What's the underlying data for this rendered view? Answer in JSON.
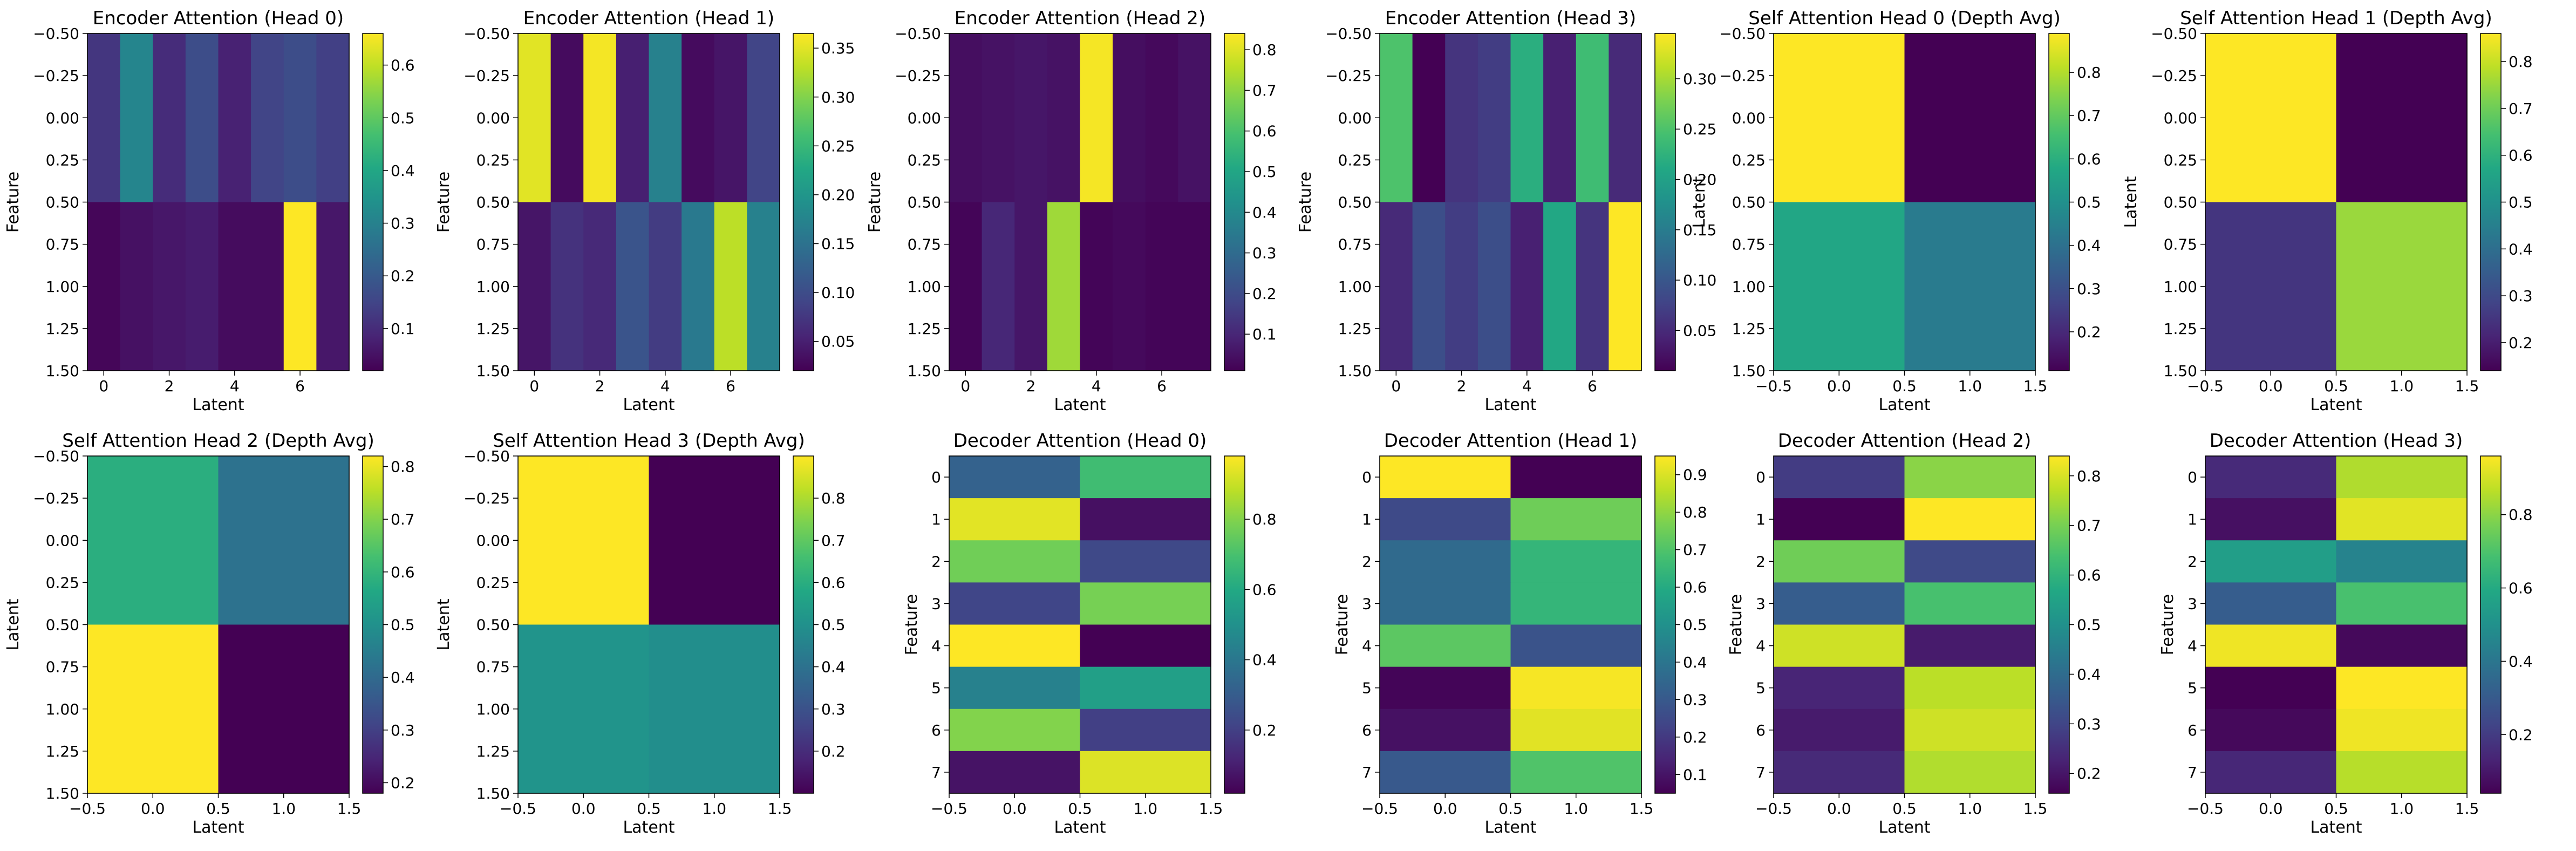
{
  "colormap": "viridis",
  "chart_data": [
    {
      "type": "heatmap",
      "title": "Encoder Attention (Head 0)",
      "xlabel": "Latent",
      "ylabel": "Feature",
      "extent": [
        -0.5,
        7.5,
        1.5,
        -0.5
      ],
      "rows": [
        [
          0.12,
          0.31,
          0.1,
          0.17,
          0.08,
          0.15,
          0.17,
          0.14
        ],
        [
          0.03,
          0.05,
          0.06,
          0.07,
          0.04,
          0.04,
          0.66,
          0.06
        ]
      ],
      "xticks": [
        0,
        2,
        4,
        6
      ],
      "yticks": [
        -0.5,
        -0.25,
        0.0,
        0.25,
        0.5,
        0.75,
        1.0,
        1.25,
        1.5
      ],
      "xtick_labels": [
        "0",
        "2",
        "4",
        "6"
      ],
      "ytick_labels": [
        "−0.50",
        "−0.25",
        "0.00",
        "0.25",
        "0.50",
        "0.75",
        "1.00",
        "1.25",
        "1.50"
      ],
      "colorbar": {
        "min": 0.02,
        "max": 0.66,
        "ticks": [
          0.1,
          0.2,
          0.3,
          0.4,
          0.5,
          0.6
        ],
        "labels": [
          "0.1",
          "0.2",
          "0.3",
          "0.4",
          "0.5",
          "0.6"
        ]
      }
    },
    {
      "type": "heatmap",
      "title": "Encoder Attention (Head 1)",
      "xlabel": "Latent",
      "ylabel": "Feature",
      "extent": [
        -0.5,
        7.5,
        1.5,
        -0.5
      ],
      "rows": [
        [
          0.35,
          0.03,
          0.36,
          0.05,
          0.17,
          0.03,
          0.04,
          0.09
        ],
        [
          0.04,
          0.07,
          0.06,
          0.11,
          0.08,
          0.16,
          0.33,
          0.17
        ]
      ],
      "xticks": [
        0,
        2,
        4,
        6
      ],
      "yticks": [
        -0.5,
        -0.25,
        0.0,
        0.25,
        0.5,
        0.75,
        1.0,
        1.25,
        1.5
      ],
      "xtick_labels": [
        "0",
        "2",
        "4",
        "6"
      ],
      "ytick_labels": [
        "−0.50",
        "−0.25",
        "0.00",
        "0.25",
        "0.50",
        "0.75",
        "1.00",
        "1.25",
        "1.50"
      ],
      "colorbar": {
        "min": 0.02,
        "max": 0.365,
        "ticks": [
          0.05,
          0.1,
          0.15,
          0.2,
          0.25,
          0.3,
          0.35
        ],
        "labels": [
          "0.05",
          "0.10",
          "0.15",
          "0.20",
          "0.25",
          "0.30",
          "0.35"
        ]
      }
    },
    {
      "type": "heatmap",
      "title": "Encoder Attention (Head 2)",
      "xlabel": "Latent",
      "ylabel": "Feature",
      "extent": [
        -0.5,
        7.5,
        1.5,
        -0.5
      ],
      "rows": [
        [
          0.04,
          0.05,
          0.06,
          0.05,
          0.83,
          0.04,
          0.03,
          0.05
        ],
        [
          0.02,
          0.1,
          0.06,
          0.72,
          0.02,
          0.03,
          0.02,
          0.02
        ]
      ],
      "xticks": [
        0,
        2,
        4,
        6
      ],
      "yticks": [
        -0.5,
        -0.25,
        0.0,
        0.25,
        0.5,
        0.75,
        1.0,
        1.25,
        1.5
      ],
      "xtick_labels": [
        "0",
        "2",
        "4",
        "6"
      ],
      "ytick_labels": [
        "−0.50",
        "−0.25",
        "0.00",
        "0.25",
        "0.50",
        "0.75",
        "1.00",
        "1.25",
        "1.50"
      ],
      "colorbar": {
        "min": 0.01,
        "max": 0.84,
        "ticks": [
          0.1,
          0.2,
          0.3,
          0.4,
          0.5,
          0.6,
          0.7,
          0.8
        ],
        "labels": [
          "0.1",
          "0.2",
          "0.3",
          "0.4",
          "0.5",
          "0.6",
          "0.7",
          "0.8"
        ]
      }
    },
    {
      "type": "heatmap",
      "title": "Encoder Attention (Head 3)",
      "xlabel": "Latent",
      "ylabel": "Feature",
      "extent": [
        -0.5,
        7.5,
        1.5,
        -0.5
      ],
      "rows": [
        [
          0.25,
          0.01,
          0.06,
          0.07,
          0.22,
          0.04,
          0.24,
          0.05
        ],
        [
          0.05,
          0.09,
          0.07,
          0.09,
          0.04,
          0.21,
          0.06,
          0.35
        ]
      ],
      "xticks": [
        0,
        2,
        4,
        6
      ],
      "yticks": [
        -0.5,
        -0.25,
        0.0,
        0.25,
        0.5,
        0.75,
        1.0,
        1.25,
        1.5
      ],
      "xtick_labels": [
        "0",
        "2",
        "4",
        "6"
      ],
      "ytick_labels": [
        "−0.50",
        "−0.25",
        "0.00",
        "0.25",
        "0.50",
        "0.75",
        "1.00",
        "1.25",
        "1.50"
      ],
      "colorbar": {
        "min": 0.01,
        "max": 0.345,
        "ticks": [
          0.05,
          0.1,
          0.15,
          0.2,
          0.25,
          0.3
        ],
        "labels": [
          "0.05",
          "0.10",
          "0.15",
          "0.20",
          "0.25",
          "0.30"
        ]
      }
    },
    {
      "type": "heatmap",
      "title": "Self Attention Head 0 (Depth Avg)",
      "xlabel": "Latent",
      "ylabel": "Latent",
      "extent": [
        -0.5,
        1.5,
        1.5,
        -0.5
      ],
      "rows": [
        [
          0.89,
          0.11
        ],
        [
          0.57,
          0.43
        ]
      ],
      "xticks": [
        -0.5,
        0.0,
        0.5,
        1.0,
        1.5
      ],
      "yticks": [
        -0.5,
        -0.25,
        0.0,
        0.25,
        0.5,
        0.75,
        1.0,
        1.25,
        1.5
      ],
      "xtick_labels": [
        "−0.5",
        "0.0",
        "0.5",
        "1.0",
        "1.5"
      ],
      "ytick_labels": [
        "−0.50",
        "−0.25",
        "0.00",
        "0.25",
        "0.50",
        "0.75",
        "1.00",
        "1.25",
        "1.50"
      ],
      "colorbar": {
        "min": 0.11,
        "max": 0.89,
        "ticks": [
          0.2,
          0.3,
          0.4,
          0.5,
          0.6,
          0.7,
          0.8
        ],
        "labels": [
          "0.2",
          "0.3",
          "0.4",
          "0.5",
          "0.6",
          "0.7",
          "0.8"
        ]
      }
    },
    {
      "type": "heatmap",
      "title": "Self Attention Head 1 (Depth Avg)",
      "xlabel": "Latent",
      "ylabel": "Latent",
      "extent": [
        -0.5,
        1.5,
        1.5,
        -0.5
      ],
      "rows": [
        [
          0.86,
          0.14
        ],
        [
          0.25,
          0.75
        ]
      ],
      "xticks": [
        -0.5,
        0.0,
        0.5,
        1.0,
        1.5
      ],
      "yticks": [
        -0.5,
        -0.25,
        0.0,
        0.25,
        0.5,
        0.75,
        1.0,
        1.25,
        1.5
      ],
      "xtick_labels": [
        "−0.5",
        "0.0",
        "0.5",
        "1.0",
        "1.5"
      ],
      "ytick_labels": [
        "−0.50",
        "−0.25",
        "0.00",
        "0.25",
        "0.50",
        "0.75",
        "1.00",
        "1.25",
        "1.50"
      ],
      "colorbar": {
        "min": 0.14,
        "max": 0.86,
        "ticks": [
          0.2,
          0.3,
          0.4,
          0.5,
          0.6,
          0.7,
          0.8
        ],
        "labels": [
          "0.2",
          "0.3",
          "0.4",
          "0.5",
          "0.6",
          "0.7",
          "0.8"
        ]
      }
    },
    {
      "type": "heatmap",
      "title": "Self Attention Head 2 (Depth Avg)",
      "xlabel": "Latent",
      "ylabel": "Latent",
      "extent": [
        -0.5,
        1.5,
        1.5,
        -0.5
      ],
      "rows": [
        [
          0.58,
          0.42
        ],
        [
          0.82,
          0.18
        ]
      ],
      "xticks": [
        -0.5,
        0.0,
        0.5,
        1.0,
        1.5
      ],
      "yticks": [
        -0.5,
        -0.25,
        0.0,
        0.25,
        0.5,
        0.75,
        1.0,
        1.25,
        1.5
      ],
      "xtick_labels": [
        "−0.5",
        "0.0",
        "0.5",
        "1.0",
        "1.5"
      ],
      "ytick_labels": [
        "−0.50",
        "−0.25",
        "0.00",
        "0.25",
        "0.50",
        "0.75",
        "1.00",
        "1.25",
        "1.50"
      ],
      "colorbar": {
        "min": 0.18,
        "max": 0.82,
        "ticks": [
          0.2,
          0.3,
          0.4,
          0.5,
          0.6,
          0.7,
          0.8
        ],
        "labels": [
          "0.2",
          "0.3",
          "0.4",
          "0.5",
          "0.6",
          "0.7",
          "0.8"
        ]
      }
    },
    {
      "type": "heatmap",
      "title": "Self Attention Head 3 (Depth Avg)",
      "xlabel": "Latent",
      "ylabel": "Latent",
      "extent": [
        -0.5,
        1.5,
        1.5,
        -0.5
      ],
      "rows": [
        [
          0.9,
          0.1
        ],
        [
          0.51,
          0.49
        ]
      ],
      "xticks": [
        -0.5,
        0.0,
        0.5,
        1.0,
        1.5
      ],
      "yticks": [
        -0.5,
        -0.25,
        0.0,
        0.25,
        0.5,
        0.75,
        1.0,
        1.25,
        1.5
      ],
      "xtick_labels": [
        "−0.5",
        "0.0",
        "0.5",
        "1.0",
        "1.5"
      ],
      "ytick_labels": [
        "−0.50",
        "−0.25",
        "0.00",
        "0.25",
        "0.50",
        "0.75",
        "1.00",
        "1.25",
        "1.50"
      ],
      "colorbar": {
        "min": 0.1,
        "max": 0.9,
        "ticks": [
          0.2,
          0.3,
          0.4,
          0.5,
          0.6,
          0.7,
          0.8
        ],
        "labels": [
          "0.2",
          "0.3",
          "0.4",
          "0.5",
          "0.6",
          "0.7",
          "0.8"
        ]
      }
    },
    {
      "type": "heatmap",
      "title": "Decoder Attention (Head 0)",
      "xlabel": "Latent",
      "ylabel": "Feature",
      "extent": [
        -0.5,
        1.5,
        7.5,
        -0.5
      ],
      "rows": [
        [
          0.32,
          0.68
        ],
        [
          0.94,
          0.06
        ],
        [
          0.77,
          0.23
        ],
        [
          0.22,
          0.78
        ],
        [
          0.98,
          0.02
        ],
        [
          0.44,
          0.56
        ],
        [
          0.8,
          0.2
        ],
        [
          0.07,
          0.93
        ]
      ],
      "xticks": [
        -0.5,
        0.0,
        0.5,
        1.0,
        1.5
      ],
      "yticks": [
        0,
        1,
        2,
        3,
        4,
        5,
        6,
        7
      ],
      "xtick_labels": [
        "−0.5",
        "0.0",
        "0.5",
        "1.0",
        "1.5"
      ],
      "ytick_labels": [
        "0",
        "1",
        "2",
        "3",
        "4",
        "5",
        "6",
        "7"
      ],
      "colorbar": {
        "min": 0.02,
        "max": 0.98,
        "ticks": [
          0.2,
          0.4,
          0.6,
          0.8
        ],
        "labels": [
          "0.2",
          "0.4",
          "0.6",
          "0.8"
        ]
      }
    },
    {
      "type": "heatmap",
      "title": "Decoder Attention (Head 1)",
      "xlabel": "Latent",
      "ylabel": "Feature",
      "extent": [
        -0.5,
        1.5,
        7.5,
        -0.5
      ],
      "rows": [
        [
          0.95,
          0.05
        ],
        [
          0.25,
          0.75
        ],
        [
          0.36,
          0.64
        ],
        [
          0.36,
          0.64
        ],
        [
          0.72,
          0.28
        ],
        [
          0.06,
          0.94
        ],
        [
          0.09,
          0.91
        ],
        [
          0.3,
          0.7
        ]
      ],
      "xticks": [
        -0.5,
        0.0,
        0.5,
        1.0,
        1.5
      ],
      "yticks": [
        0,
        1,
        2,
        3,
        4,
        5,
        6,
        7
      ],
      "xtick_labels": [
        "−0.5",
        "0.0",
        "0.5",
        "1.0",
        "1.5"
      ],
      "ytick_labels": [
        "0",
        "1",
        "2",
        "3",
        "4",
        "5",
        "6",
        "7"
      ],
      "colorbar": {
        "min": 0.05,
        "max": 0.95,
        "ticks": [
          0.1,
          0.2,
          0.3,
          0.4,
          0.5,
          0.6,
          0.7,
          0.8,
          0.9
        ],
        "labels": [
          "0.1",
          "0.2",
          "0.3",
          "0.4",
          "0.5",
          "0.6",
          "0.7",
          "0.8",
          "0.9"
        ]
      }
    },
    {
      "type": "heatmap",
      "title": "Decoder Attention (Head 2)",
      "xlabel": "Latent",
      "ylabel": "Feature",
      "extent": [
        -0.5,
        1.5,
        7.5,
        -0.5
      ],
      "rows": [
        [
          0.28,
          0.72
        ],
        [
          0.16,
          0.84
        ],
        [
          0.69,
          0.31
        ],
        [
          0.36,
          0.64
        ],
        [
          0.79,
          0.21
        ],
        [
          0.23,
          0.77
        ],
        [
          0.21,
          0.79
        ],
        [
          0.24,
          0.76
        ]
      ],
      "xticks": [
        -0.5,
        0.0,
        0.5,
        1.0,
        1.5
      ],
      "yticks": [
        0,
        1,
        2,
        3,
        4,
        5,
        6,
        7
      ],
      "xtick_labels": [
        "−0.5",
        "0.0",
        "0.5",
        "1.0",
        "1.5"
      ],
      "ytick_labels": [
        "0",
        "1",
        "2",
        "3",
        "4",
        "5",
        "6",
        "7"
      ],
      "colorbar": {
        "min": 0.16,
        "max": 0.84,
        "ticks": [
          0.2,
          0.3,
          0.4,
          0.5,
          0.6,
          0.7,
          0.8
        ],
        "labels": [
          "0.2",
          "0.3",
          "0.4",
          "0.5",
          "0.6",
          "0.7",
          "0.8"
        ]
      }
    },
    {
      "type": "heatmap",
      "title": "Decoder Attention (Head 3)",
      "xlabel": "Latent",
      "ylabel": "Feature",
      "extent": [
        -0.5,
        1.5,
        7.5,
        -0.5
      ],
      "rows": [
        [
          0.15,
          0.85
        ],
        [
          0.08,
          0.92
        ],
        [
          0.55,
          0.45
        ],
        [
          0.31,
          0.69
        ],
        [
          0.94,
          0.06
        ],
        [
          0.04,
          0.96
        ],
        [
          0.06,
          0.94
        ],
        [
          0.14,
          0.86
        ]
      ],
      "xticks": [
        -0.5,
        0.0,
        0.5,
        1.0,
        1.5
      ],
      "yticks": [
        0,
        1,
        2,
        3,
        4,
        5,
        6,
        7
      ],
      "xtick_labels": [
        "−0.5",
        "0.0",
        "0.5",
        "1.0",
        "1.5"
      ],
      "ytick_labels": [
        "0",
        "1",
        "2",
        "3",
        "4",
        "5",
        "6",
        "7"
      ],
      "colorbar": {
        "min": 0.04,
        "max": 0.96,
        "ticks": [
          0.2,
          0.4,
          0.6,
          0.8
        ],
        "labels": [
          "0.2",
          "0.4",
          "0.6",
          "0.8"
        ]
      }
    }
  ]
}
